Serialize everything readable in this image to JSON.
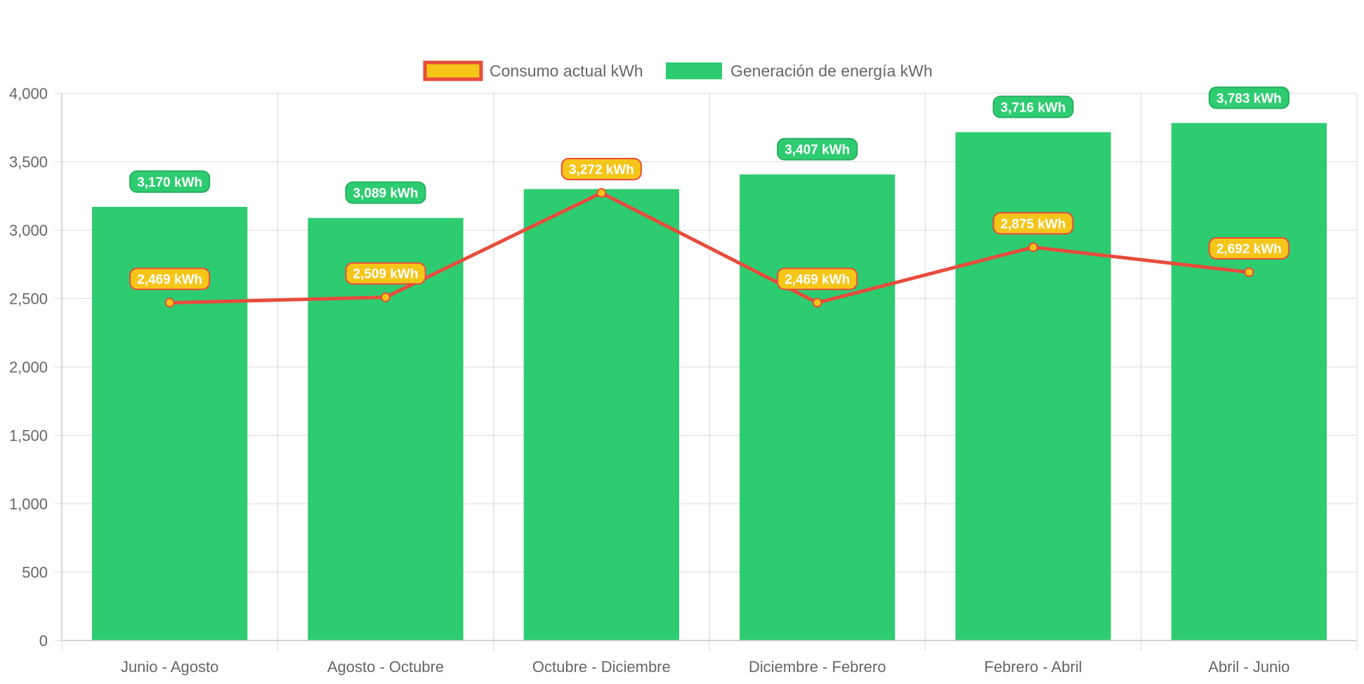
{
  "chart_data": {
    "type": "bar",
    "categories": [
      "Junio - Agosto",
      "Agosto - Octubre",
      "Octubre - Diciembre",
      "Diciembre - Febrero",
      "Febrero - Abril",
      "Abril - Junio"
    ],
    "series": [
      {
        "name": "Consumo actual kWh",
        "type": "line",
        "values": [
          2469,
          2509,
          3272,
          2469,
          2875,
          2692
        ],
        "data_labels": [
          "2,469 kWh",
          "2,509 kWh",
          "3,272 kWh",
          "2,469 kWh",
          "2,875 kWh",
          "2,692 kWh"
        ],
        "line_color": "#e74c3c",
        "fill_color": "#f5c518",
        "label_color": "#f5c518",
        "label_border": "#e74c3c"
      },
      {
        "name": "Generación de energía kWh",
        "type": "bar",
        "values": [
          3170,
          3089,
          3300,
          3407,
          3716,
          3783
        ],
        "data_labels": [
          "3,170 kWh",
          "3,089 kWh",
          "",
          "3,407 kWh",
          "3,716 kWh",
          "3,783 kWh"
        ],
        "color": "#2ecc71",
        "label_color": "#2ecc71",
        "label_border": "#27ae60"
      }
    ],
    "ylim": [
      0,
      4000
    ],
    "yticks": [
      0,
      500,
      1000,
      1500,
      2000,
      2500,
      3000,
      3500,
      4000
    ],
    "ytick_labels": [
      "0",
      "500",
      "1,000",
      "1,500",
      "2,000",
      "2,500",
      "3,000",
      "3,500",
      "4,000"
    ],
    "grid": true,
    "grid_color": "#e0e0e0",
    "legend_position": "top-center",
    "title": "",
    "xlabel": "",
    "ylabel": ""
  }
}
